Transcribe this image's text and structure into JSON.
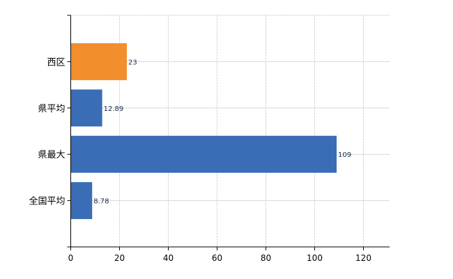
{
  "chart_data": {
    "type": "bar",
    "orientation": "horizontal",
    "categories": [
      "西区",
      "県平均",
      "県最大",
      "全国平均"
    ],
    "values": [
      23,
      12.89,
      109,
      8.78
    ],
    "data_labels": [
      "23",
      "12.89",
      "109",
      "8.78"
    ],
    "bar_colors": [
      "#f28e2b",
      "#3a6db5",
      "#3a6db5",
      "#3a6db5"
    ],
    "title": "",
    "xlabel": "",
    "ylabel": "",
    "xlim": [
      0,
      130
    ],
    "xticks": [
      0,
      20,
      40,
      60,
      80,
      100,
      120
    ],
    "grid": true,
    "legend": "none"
  }
}
